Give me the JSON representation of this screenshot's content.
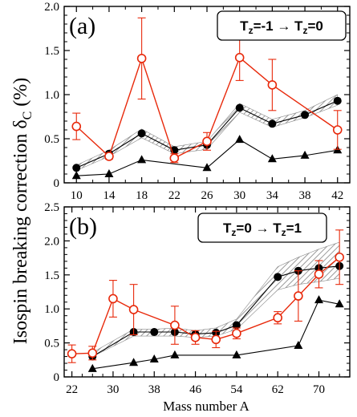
{
  "ylabel": "Isospin breaking correction δ",
  "ylabel_sub": "C",
  "ylabel_unit": "(%)",
  "xlabel": "Mass number A",
  "colors": {
    "red": "#e8290b",
    "black": "#000000",
    "band": "#9a9a9a"
  },
  "chart_data": [
    {
      "type": "line",
      "panel": "(a)",
      "legend": {
        "text": "T=-1 → T=0",
        "parts": [
          "T",
          "z",
          "=-1 → T",
          "z",
          "=0"
        ]
      },
      "xlim": [
        8.5,
        43.5
      ],
      "ylim": [
        0,
        2.0
      ],
      "xticks": [
        10,
        14,
        18,
        22,
        26,
        30,
        34,
        38,
        42
      ],
      "yticks": [
        0,
        0.5,
        1.0,
        1.5,
        2.0
      ],
      "ytick_labels": [
        "0",
        "0.5",
        "1.0",
        "1.5",
        "2.0"
      ],
      "band": {
        "x": [
          10,
          14,
          18,
          22,
          26,
          30,
          34,
          38,
          42
        ],
        "low": [
          0.14,
          0.3,
          0.51,
          0.33,
          0.38,
          0.8,
          0.63,
          0.74,
          0.88
        ],
        "high": [
          0.2,
          0.37,
          0.61,
          0.41,
          0.47,
          0.9,
          0.72,
          0.82,
          1.0
        ]
      },
      "series": [
        {
          "style": "red-open-circle",
          "x": [
            10,
            14,
            18,
            22,
            26,
            30,
            34,
            38,
            42
          ],
          "y": [
            0.64,
            0.3,
            1.41,
            0.28,
            0.47,
            1.42,
            1.11,
            null,
            0.6
          ],
          "err": [
            0.15,
            0.03,
            0.46,
            0.05,
            0.1,
            0.26,
            0.29,
            null,
            0.22
          ]
        },
        {
          "style": "black-filled-circle",
          "x": [
            10,
            14,
            18,
            22,
            26,
            30,
            34,
            38,
            42
          ],
          "y": [
            0.17,
            0.33,
            0.56,
            0.37,
            0.43,
            0.85,
            0.67,
            0.77,
            0.93
          ]
        },
        {
          "style": "black-triangle",
          "x": [
            10,
            14,
            18,
            26,
            30,
            34,
            38,
            42
          ],
          "y": [
            0.08,
            0.1,
            0.26,
            0.17,
            0.49,
            0.27,
            0.31,
            0.37
          ]
        }
      ]
    },
    {
      "type": "line",
      "panel": "(b)",
      "legend": {
        "text": "T=0 → T=1",
        "parts": [
          "T",
          "z",
          "=0 → T",
          "z",
          "=1"
        ]
      },
      "xlim": [
        20.5,
        76
      ],
      "ylim": [
        0,
        2.5
      ],
      "xticks": [
        22,
        30,
        38,
        46,
        54,
        62,
        70
      ],
      "yticks": [
        0,
        0.5,
        1.0,
        1.5,
        2.0,
        2.5
      ],
      "ytick_labels": [
        "0",
        "0.5",
        "1.0",
        "1.5",
        "2.0",
        "2.5"
      ],
      "band": {
        "x": [
          26,
          34,
          38,
          42,
          46,
          50,
          54,
          62,
          66,
          70,
          74
        ],
        "low": [
          0.3,
          0.6,
          0.6,
          0.6,
          0.58,
          0.6,
          0.7,
          1.28,
          1.36,
          1.4,
          1.45
        ],
        "high": [
          0.36,
          0.7,
          0.7,
          0.72,
          0.68,
          0.72,
          0.85,
          1.62,
          1.76,
          1.88,
          1.98
        ]
      },
      "series": [
        {
          "style": "red-open-circle",
          "x": [
            22,
            26,
            30,
            34,
            42,
            46,
            50,
            54,
            62,
            66,
            70,
            74
          ],
          "y": [
            0.34,
            0.35,
            1.15,
            0.99,
            0.76,
            0.58,
            0.55,
            0.64,
            0.87,
            1.19,
            1.51,
            1.76
          ],
          "err": [
            0.13,
            0.1,
            0.27,
            0.37,
            0.28,
            0.1,
            0.12,
            0.08,
            0.09,
            0.37,
            0.2,
            0.4
          ]
        },
        {
          "style": "black-filled-circle",
          "x": [
            26,
            34,
            38,
            42,
            46,
            50,
            54,
            62,
            66,
            70,
            74
          ],
          "y": [
            0.3,
            0.66,
            0.66,
            0.66,
            0.63,
            0.65,
            0.76,
            1.47,
            1.56,
            1.6,
            1.63
          ]
        },
        {
          "style": "black-triangle",
          "x": [
            26,
            34,
            38,
            42,
            54,
            66,
            70,
            74
          ],
          "y": [
            0.12,
            0.21,
            0.26,
            0.32,
            0.32,
            0.46,
            1.13,
            1.07
          ]
        }
      ]
    }
  ]
}
